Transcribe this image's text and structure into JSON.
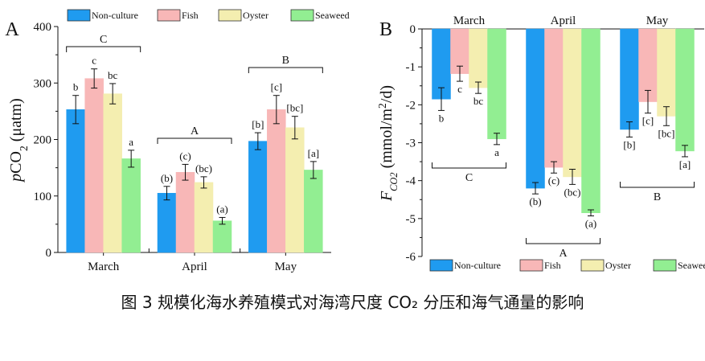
{
  "caption": "图  3 规模化海水养殖模式对海湾尺度 CO₂ 分压和海气通量的影响",
  "colors": {
    "Non-culture": "#1f9bf0",
    "Fish": "#f8b7b7",
    "Oyster": "#f4eeb0",
    "Seaweed": "#92ee92"
  },
  "chart_data": [
    {
      "type": "bar",
      "panel_label": "A",
      "categories": [
        "March",
        "April",
        "May"
      ],
      "series": [
        {
          "name": "Non-culture",
          "values": [
            253,
            105,
            197
          ],
          "errors": [
            25,
            12,
            15
          ],
          "letters": [
            "b",
            "(b)",
            "[b]"
          ]
        },
        {
          "name": "Fish",
          "values": [
            308,
            142,
            253
          ],
          "errors": [
            17,
            14,
            25
          ],
          "letters": [
            "c",
            "(c)",
            "[c]"
          ]
        },
        {
          "name": "Oyster",
          "values": [
            281,
            124,
            221
          ],
          "errors": [
            18,
            10,
            20
          ],
          "letters": [
            "bc",
            "(bc)",
            "[bc]"
          ]
        },
        {
          "name": "Seaweed",
          "values": [
            166,
            56,
            146
          ],
          "errors": [
            15,
            6,
            15
          ],
          "letters": [
            "a",
            "(a)",
            "[a]"
          ]
        }
      ],
      "group_letters": [
        "C",
        "A",
        "B"
      ],
      "ylabel": "pCO2 (μatm)",
      "ylim": [
        0,
        400
      ],
      "yticks": [
        0,
        100,
        200,
        300,
        400
      ],
      "legend": "top"
    },
    {
      "type": "bar",
      "panel_label": "B",
      "categories": [
        "March",
        "April",
        "May"
      ],
      "series": [
        {
          "name": "Non-culture",
          "values": [
            -1.85,
            -4.2,
            -2.65
          ],
          "errors": [
            0.3,
            0.15,
            0.2
          ],
          "letters": [
            "b",
            "(b)",
            "[b]"
          ]
        },
        {
          "name": "Fish",
          "values": [
            -1.18,
            -3.65,
            -1.92
          ],
          "errors": [
            0.2,
            0.15,
            0.3
          ],
          "letters": [
            "c",
            "(c)",
            "[c]"
          ]
        },
        {
          "name": "Oyster",
          "values": [
            -1.55,
            -3.9,
            -2.3
          ],
          "errors": [
            0.15,
            0.2,
            0.25
          ],
          "letters": [
            "bc",
            "(bc)",
            "[bc]"
          ]
        },
        {
          "name": "Seaweed",
          "values": [
            -2.9,
            -4.85,
            -3.22
          ],
          "errors": [
            0.15,
            0.08,
            0.15
          ],
          "letters": [
            "a",
            "(a)",
            "[a]"
          ]
        }
      ],
      "group_letters": [
        "C",
        "A",
        "B"
      ],
      "ylabel": "FCO2 (mmol/m2/d)",
      "ylim": [
        -6,
        0
      ],
      "yticks": [
        0,
        -1,
        -2,
        -3,
        -4,
        -5,
        -6
      ],
      "legend": "bottom"
    }
  ]
}
